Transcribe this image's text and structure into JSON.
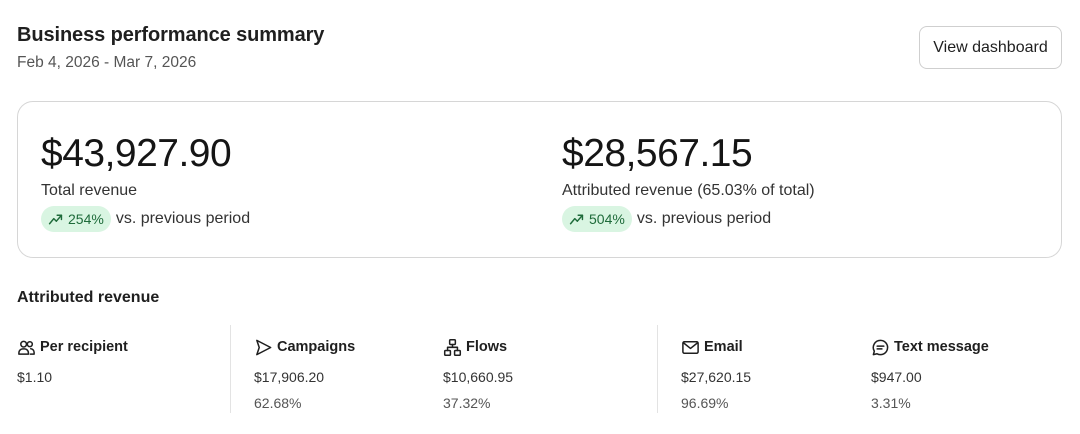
{
  "header": {
    "title": "Business performance summary",
    "date_range": "Feb 4, 2026 - Mar 7, 2026",
    "view_button": "View dashboard"
  },
  "summary": {
    "total_revenue": {
      "value": "$43,927.90",
      "label": "Total revenue",
      "change": "254%",
      "change_text": "vs. previous period",
      "icon": "trending-up-icon"
    },
    "attributed_revenue": {
      "value": "$28,567.15",
      "label": "Attributed revenue (65.03% of total)",
      "change": "504%",
      "change_text": "vs. previous period",
      "icon": "trending-up-icon"
    }
  },
  "attributed": {
    "title": "Attributed revenue",
    "stats": [
      {
        "label": "Per recipient",
        "icon": "users-icon",
        "value": "$1.10",
        "percent": ""
      },
      {
        "label": "Campaigns",
        "icon": "send-icon",
        "value": "$17,906.20",
        "percent": "62.68%"
      },
      {
        "label": "Flows",
        "icon": "flow-icon",
        "value": "$10,660.95",
        "percent": "37.32%"
      },
      {
        "label": "Email",
        "icon": "mail-icon",
        "value": "$27,620.15",
        "percent": "96.69%"
      },
      {
        "label": "Text message",
        "icon": "message-icon",
        "value": "$947.00",
        "percent": "3.31%"
      }
    ]
  },
  "colors": {
    "positive_bg": "#d9f5e2",
    "positive_fg": "#1e6b3a"
  }
}
